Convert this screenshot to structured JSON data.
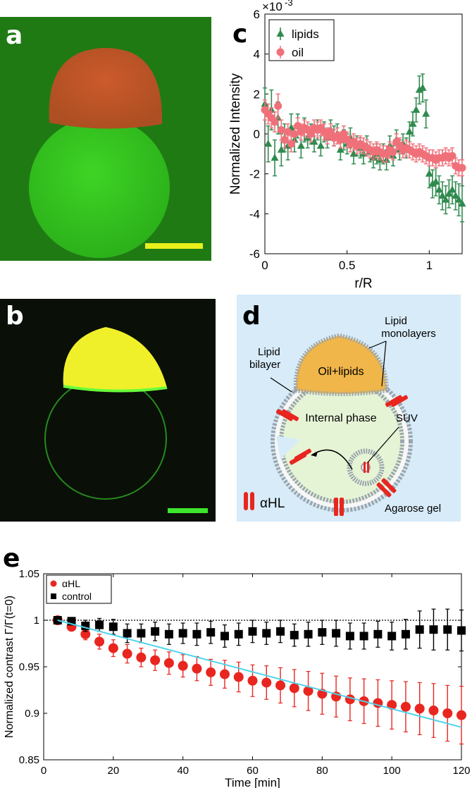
{
  "panels": {
    "a": "a",
    "b": "b",
    "c": "c",
    "d": "d",
    "e": "e"
  },
  "colors": {
    "micrograph_a_bg": "#1f7a14",
    "micrograph_b_bg": "#0a0f08",
    "oil_cap_a": "#c0562a",
    "droplet_a": "#34c61e",
    "oil_cap_b": "#f0f02a",
    "scalebar_a": "#e8ef1b",
    "scalebar_b": "#3de62c",
    "lipids": "#2f8a4e",
    "oil": "#f0707a",
    "alphaHL": "#e8261f",
    "control": "#000000",
    "fit_line": "#4cd3ea",
    "schematic_bg": "#d7ebf8",
    "internal_phase": "#e6f4d6",
    "oil_lipids_fill": "#f0b64a"
  },
  "schematic": {
    "lipid_monolayers": [
      "Lipid",
      "monolayers"
    ],
    "lipid_bilayer": [
      "Lipid",
      "bilayer"
    ],
    "oil_lipids": "Oil+lipids",
    "internal_phase": "Internal phase",
    "suv": "SUV",
    "alpha_hl": "αHL",
    "agarose_gel": "Agarose gel"
  },
  "chart_data": [
    {
      "type": "scatter",
      "panel": "c",
      "xlabel": "r/R",
      "ylabel": "Normalized Intensity",
      "y_multiplier": "×10",
      "y_exponent": "-3",
      "xlim": [
        0,
        1.2
      ],
      "ylim": [
        -6,
        6
      ],
      "xticks": [
        "0",
        "0.5",
        "1"
      ],
      "yticks": [
        "-6",
        "-4",
        "-2",
        "0",
        "2",
        "4",
        "6"
      ],
      "legend": "top-left",
      "series": [
        {
          "name": "lipids",
          "marker": "triangle",
          "x": [
            0.0,
            0.02,
            0.04,
            0.06,
            0.08,
            0.1,
            0.12,
            0.14,
            0.16,
            0.18,
            0.2,
            0.22,
            0.24,
            0.26,
            0.28,
            0.3,
            0.32,
            0.34,
            0.36,
            0.38,
            0.4,
            0.42,
            0.44,
            0.46,
            0.48,
            0.5,
            0.52,
            0.54,
            0.56,
            0.58,
            0.6,
            0.62,
            0.64,
            0.66,
            0.68,
            0.7,
            0.72,
            0.74,
            0.76,
            0.78,
            0.8,
            0.82,
            0.84,
            0.86,
            0.88,
            0.9,
            0.92,
            0.94,
            0.96,
            0.98,
            1.0,
            1.02,
            1.04,
            1.06,
            1.08,
            1.1,
            1.12,
            1.14,
            1.16,
            1.18,
            1.2
          ],
          "y": [
            1.5,
            -0.5,
            1.2,
            -1.2,
            0.8,
            -0.8,
            -0.2,
            -0.6,
            0.3,
            -0.3,
            0.4,
            -0.6,
            0.2,
            -0.2,
            0.0,
            -0.4,
            0.2,
            -0.6,
            0.1,
            -0.2,
            0.2,
            -0.1,
            0.0,
            -0.8,
            -0.3,
            -0.5,
            -0.2,
            -1.0,
            -0.6,
            -0.7,
            -1.0,
            -0.6,
            -0.9,
            -1.2,
            -1.0,
            -1.3,
            -1.0,
            -1.3,
            -0.6,
            -1.1,
            -0.3,
            -0.8,
            -0.5,
            -0.7,
            0.1,
            0.5,
            1.2,
            2.2,
            2.3,
            1.0,
            -2.0,
            -2.5,
            -2.4,
            -2.8,
            -3.1,
            -3.3,
            -3.0,
            -2.8,
            -3.1,
            -3.3,
            -3.5
          ],
          "err": [
            0.8,
            0.9,
            1.0,
            0.9,
            0.8,
            0.8,
            0.7,
            0.7,
            0.7,
            0.6,
            0.6,
            0.6,
            0.6,
            0.5,
            0.5,
            0.5,
            0.5,
            0.5,
            0.5,
            0.5,
            0.5,
            0.5,
            0.5,
            0.5,
            0.5,
            0.5,
            0.5,
            0.5,
            0.5,
            0.5,
            0.5,
            0.5,
            0.5,
            0.5,
            0.5,
            0.5,
            0.5,
            0.5,
            0.5,
            0.5,
            0.5,
            0.5,
            0.5,
            0.5,
            0.5,
            0.6,
            0.6,
            0.7,
            0.7,
            0.7,
            0.7,
            0.7,
            0.7,
            0.7,
            0.7,
            0.7,
            0.7,
            0.7,
            0.7,
            0.8,
            0.9
          ]
        },
        {
          "name": "oil",
          "marker": "circle",
          "x": [
            0.0,
            0.02,
            0.04,
            0.06,
            0.08,
            0.1,
            0.12,
            0.14,
            0.16,
            0.18,
            0.2,
            0.22,
            0.24,
            0.26,
            0.28,
            0.3,
            0.32,
            0.34,
            0.36,
            0.38,
            0.4,
            0.42,
            0.44,
            0.46,
            0.48,
            0.5,
            0.52,
            0.54,
            0.56,
            0.58,
            0.6,
            0.62,
            0.64,
            0.66,
            0.68,
            0.7,
            0.72,
            0.74,
            0.76,
            0.78,
            0.8,
            0.82,
            0.84,
            0.86,
            0.88,
            0.9,
            0.92,
            0.94,
            0.96,
            0.98,
            1.0,
            1.02,
            1.04,
            1.06,
            1.08,
            1.1,
            1.12,
            1.14,
            1.16,
            1.18,
            1.2
          ],
          "y": [
            1.2,
            1.0,
            0.8,
            0.6,
            1.4,
            0.2,
            -0.3,
            0.1,
            -0.5,
            0.0,
            0.4,
            0.1,
            0.3,
            0.2,
            0.0,
            0.3,
            0.2,
            0.3,
            0.1,
            -0.1,
            0.1,
            -0.2,
            -0.1,
            -0.3,
            0.0,
            -0.3,
            -0.5,
            -0.4,
            -0.6,
            -0.5,
            -0.6,
            -0.7,
            -0.8,
            -0.9,
            -0.8,
            -0.9,
            -1.0,
            -1.0,
            -0.8,
            -0.9,
            -0.4,
            -0.6,
            -0.8,
            -0.7,
            -0.8,
            -0.9,
            -1.0,
            -0.9,
            -1.0,
            -1.1,
            -1.2,
            -1.2,
            -1.3,
            -1.2,
            -1.2,
            -1.1,
            -1.2,
            -1.1,
            -1.6,
            -1.7,
            -1.7
          ],
          "err": [
            0.5,
            0.5,
            0.5,
            0.5,
            0.6,
            0.5,
            0.4,
            0.4,
            0.4,
            0.4,
            0.4,
            0.4,
            0.4,
            0.4,
            0.4,
            0.4,
            0.4,
            0.4,
            0.4,
            0.4,
            0.4,
            0.4,
            0.4,
            0.4,
            0.4,
            0.4,
            0.4,
            0.4,
            0.4,
            0.4,
            0.4,
            0.4,
            0.4,
            0.4,
            0.4,
            0.4,
            0.4,
            0.4,
            0.4,
            0.4,
            0.4,
            0.4,
            0.4,
            0.4,
            0.4,
            0.4,
            0.4,
            0.4,
            0.4,
            0.4,
            0.4,
            0.4,
            0.4,
            0.4,
            0.4,
            0.4,
            0.4,
            0.4,
            0.4,
            0.4,
            0.4
          ]
        }
      ]
    },
    {
      "type": "scatter",
      "panel": "e",
      "xlabel": "Time [min]",
      "ylabel": "Normalized contrast  Γ/Γ(t=0)",
      "xlim": [
        0,
        120
      ],
      "ylim": [
        0.85,
        1.05
      ],
      "xticks": [
        "0",
        "20",
        "40",
        "60",
        "80",
        "100",
        "120"
      ],
      "yticks": [
        "0.85",
        "0.9",
        "0.95",
        "1",
        "1.05"
      ],
      "reference_line_y": 1,
      "fit_line": {
        "x": [
          4,
          120
        ],
        "y": [
          1.0,
          0.885
        ]
      },
      "legend": "top-left",
      "series": [
        {
          "name": "αHL",
          "marker": "circle",
          "x": [
            4,
            8,
            12,
            16,
            20,
            24,
            28,
            32,
            36,
            40,
            44,
            48,
            52,
            56,
            60,
            64,
            68,
            72,
            76,
            80,
            84,
            88,
            92,
            96,
            100,
            104,
            108,
            112,
            116,
            120
          ],
          "y": [
            1.0,
            0.993,
            0.985,
            0.977,
            0.97,
            0.964,
            0.96,
            0.957,
            0.954,
            0.951,
            0.948,
            0.944,
            0.942,
            0.939,
            0.935,
            0.933,
            0.93,
            0.927,
            0.924,
            0.921,
            0.918,
            0.915,
            0.913,
            0.911,
            0.909,
            0.907,
            0.905,
            0.903,
            0.9,
            0.898
          ],
          "err": [
            0.002,
            0.004,
            0.006,
            0.008,
            0.009,
            0.01,
            0.01,
            0.011,
            0.012,
            0.012,
            0.013,
            0.014,
            0.015,
            0.016,
            0.017,
            0.018,
            0.019,
            0.02,
            0.021,
            0.022,
            0.022,
            0.023,
            0.024,
            0.025,
            0.026,
            0.027,
            0.028,
            0.029,
            0.03,
            0.031
          ]
        },
        {
          "name": "control",
          "marker": "square",
          "x": [
            4,
            8,
            12,
            16,
            20,
            24,
            28,
            32,
            36,
            40,
            44,
            48,
            52,
            56,
            60,
            64,
            68,
            72,
            76,
            80,
            84,
            88,
            92,
            96,
            100,
            104,
            108,
            112,
            116,
            120
          ],
          "y": [
            1.0,
            0.999,
            0.994,
            0.995,
            0.993,
            0.986,
            0.986,
            0.988,
            0.985,
            0.986,
            0.985,
            0.987,
            0.983,
            0.985,
            0.988,
            0.986,
            0.988,
            0.984,
            0.985,
            0.987,
            0.986,
            0.983,
            0.983,
            0.985,
            0.983,
            0.985,
            0.99,
            0.99,
            0.99,
            0.989
          ],
          "err": [
            0.002,
            0.004,
            0.006,
            0.007,
            0.008,
            0.01,
            0.01,
            0.01,
            0.011,
            0.011,
            0.012,
            0.012,
            0.012,
            0.012,
            0.012,
            0.012,
            0.012,
            0.012,
            0.013,
            0.013,
            0.014,
            0.014,
            0.014,
            0.014,
            0.015,
            0.016,
            0.02,
            0.022,
            0.022,
            0.022
          ]
        }
      ]
    }
  ]
}
